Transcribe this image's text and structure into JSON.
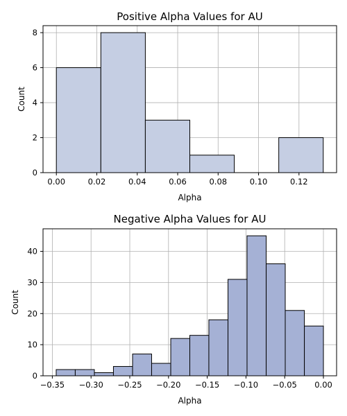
{
  "chart_data": [
    {
      "type": "bar",
      "title": "Positive Alpha Values for AU",
      "xlabel": "Alpha",
      "ylabel": "Count",
      "xlim": [
        -0.0066,
        0.1386
      ],
      "ylim": [
        0,
        8.4
      ],
      "xticks": [
        "0.00",
        "0.02",
        "0.04",
        "0.06",
        "0.08",
        "0.10",
        "0.12"
      ],
      "xtick_values": [
        0.0,
        0.02,
        0.04,
        0.06,
        0.08,
        0.1,
        0.12
      ],
      "yticks": [
        "0",
        "2",
        "4",
        "6",
        "8"
      ],
      "ytick_values": [
        0,
        2,
        4,
        6,
        8
      ],
      "grid": true,
      "bar_color": "#c5cee3",
      "bins": [
        {
          "start": 0.0,
          "end": 0.022,
          "count": 6
        },
        {
          "start": 0.022,
          "end": 0.044,
          "count": 8
        },
        {
          "start": 0.044,
          "end": 0.066,
          "count": 3
        },
        {
          "start": 0.066,
          "end": 0.088,
          "count": 1
        },
        {
          "start": 0.088,
          "end": 0.11,
          "count": 0
        },
        {
          "start": 0.11,
          "end": 0.132,
          "count": 2
        }
      ]
    },
    {
      "type": "bar",
      "title": "Negative Alpha Values for AU",
      "xlabel": "Alpha",
      "ylabel": "Count",
      "xlim": [
        -0.362,
        0.017
      ],
      "ylim": [
        0,
        47.25
      ],
      "xticks": [
        "−0.35",
        "−0.30",
        "−0.25",
        "−0.20",
        "−0.15",
        "−0.10",
        "−0.05",
        "0.00"
      ],
      "xtick_values": [
        -0.35,
        -0.3,
        -0.25,
        -0.2,
        -0.15,
        -0.1,
        -0.05,
        0.0
      ],
      "yticks": [
        "0",
        "10",
        "20",
        "30",
        "40"
      ],
      "ytick_values": [
        0,
        10,
        20,
        30,
        40
      ],
      "grid": true,
      "bar_color": "#a5b1d5",
      "bins": [
        {
          "start": -0.345,
          "end": -0.3204,
          "count": 2
        },
        {
          "start": -0.3204,
          "end": -0.2957,
          "count": 2
        },
        {
          "start": -0.2957,
          "end": -0.2711,
          "count": 1
        },
        {
          "start": -0.2711,
          "end": -0.2464,
          "count": 3
        },
        {
          "start": -0.2464,
          "end": -0.2218,
          "count": 7
        },
        {
          "start": -0.2218,
          "end": -0.1971,
          "count": 4
        },
        {
          "start": -0.1971,
          "end": -0.1725,
          "count": 12
        },
        {
          "start": -0.1725,
          "end": -0.1479,
          "count": 13
        },
        {
          "start": -0.1479,
          "end": -0.1232,
          "count": 18
        },
        {
          "start": -0.1232,
          "end": -0.0986,
          "count": 31
        },
        {
          "start": -0.0986,
          "end": -0.0739,
          "count": 45
        },
        {
          "start": -0.0739,
          "end": -0.0493,
          "count": 36
        },
        {
          "start": -0.0493,
          "end": -0.0246,
          "count": 21
        },
        {
          "start": -0.0246,
          "end": 0.0,
          "count": 16
        }
      ]
    }
  ]
}
